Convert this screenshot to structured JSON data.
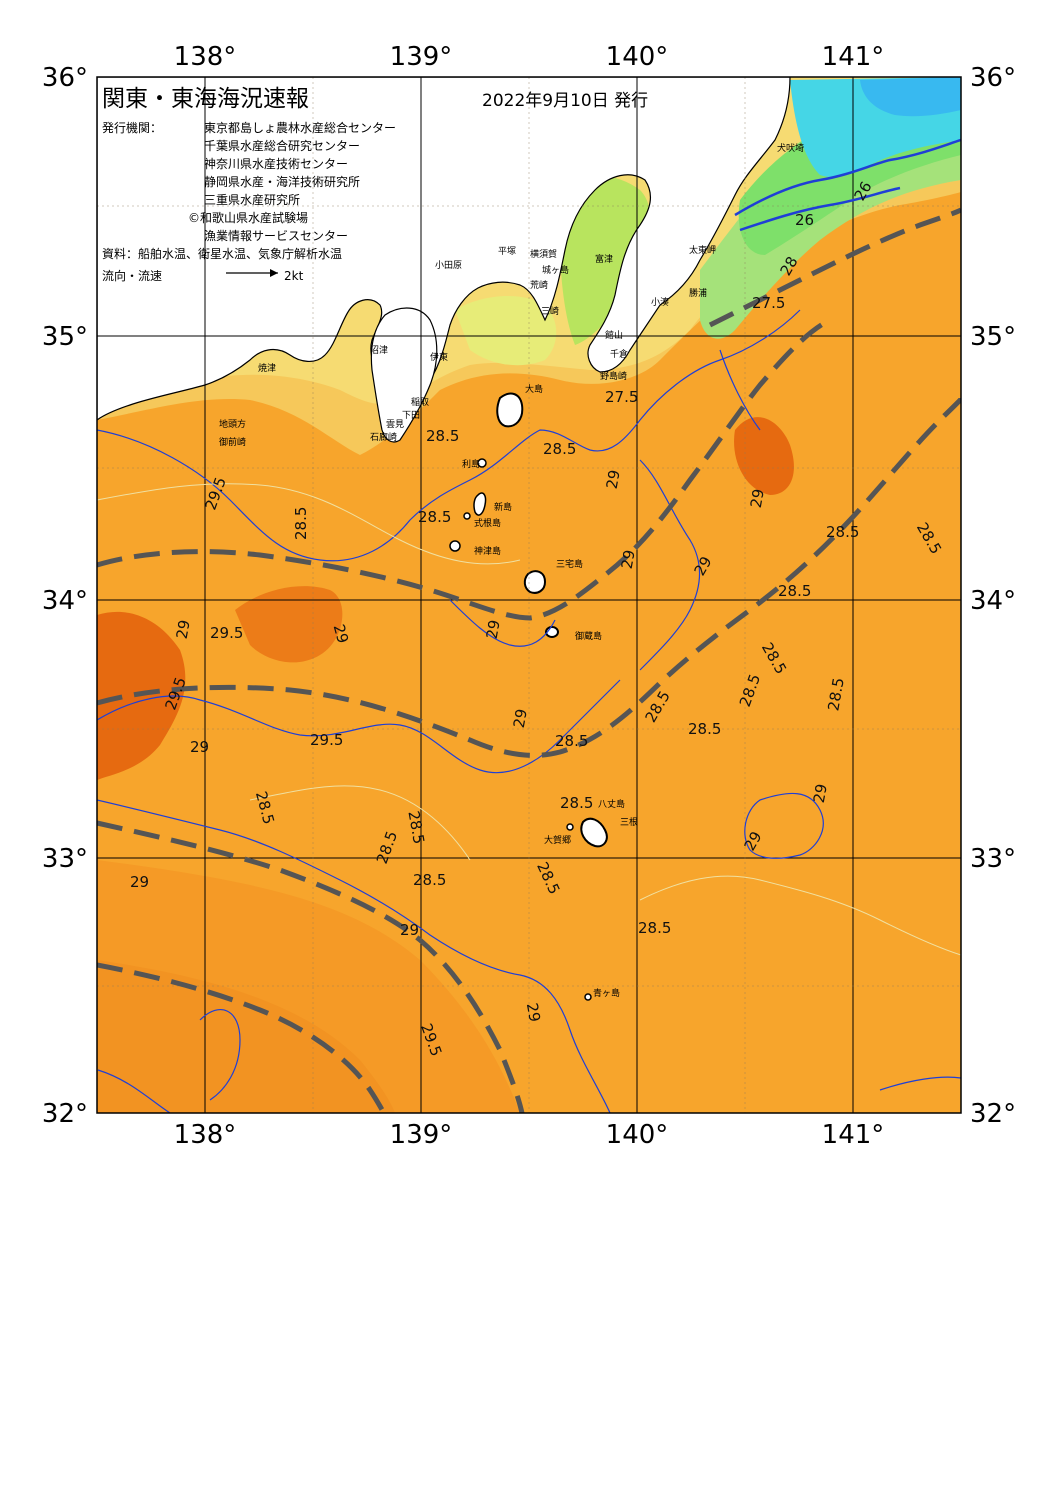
{
  "title": "関東・東海海況速報",
  "issue_date": "2022年9月10日 発行",
  "issuers_label": "発行機関：",
  "issuers": [
    "東京都島しょ農林水産総合センター",
    "千葉県水産総合研究センター",
    "神奈川県水産技術センター",
    "静岡県水産・海洋技術研究所",
    "三重県水産研究所",
    "©和歌山県水産試験場",
    "漁業情報サービスセンター"
  ],
  "sources": "資料：船舶水温、衛星水温、気象庁解析水温",
  "flow_legend": {
    "label": "流向・流速",
    "value": "2kt"
  },
  "lon_labels": [
    "138°",
    "139°",
    "140°",
    "141°"
  ],
  "lat_labels": [
    "36°",
    "35°",
    "34°",
    "33°",
    "32°"
  ],
  "colors": {
    "sea_warm": "#f7a52c",
    "sea_warmer": "#f08b1e",
    "sea_hot": "#e66a10",
    "shelf_yellow": "#f6d36a",
    "shelf_light": "#f9ec87",
    "cool_green": "#8fe36c",
    "cold_cyan": "#3fd9e8",
    "land": "#ffffff",
    "isotherm": "#1f3fd6",
    "current_axis": "#555555"
  },
  "places": [
    {
      "name": "大島"
    },
    {
      "name": "利島"
    },
    {
      "name": "新島"
    },
    {
      "name": "式根島"
    },
    {
      "name": "神津島"
    },
    {
      "name": "三宅島"
    },
    {
      "name": "御蔵島"
    },
    {
      "name": "八丈島"
    },
    {
      "name": "三根"
    },
    {
      "name": "大賀郷"
    },
    {
      "name": "青ヶ島"
    },
    {
      "name": "犬吠埼"
    },
    {
      "name": "太東岬"
    },
    {
      "name": "勝浦"
    },
    {
      "name": "小湊"
    },
    {
      "name": "館山"
    },
    {
      "name": "千倉"
    },
    {
      "name": "野島崎"
    },
    {
      "name": "富津"
    },
    {
      "name": "横須賀"
    },
    {
      "name": "城ヶ島"
    },
    {
      "name": "荒崎"
    },
    {
      "name": "三崎"
    },
    {
      "name": "平塚"
    },
    {
      "name": "小田原"
    },
    {
      "name": "伊東"
    },
    {
      "name": "沼津"
    },
    {
      "name": "稲取"
    },
    {
      "name": "下田"
    },
    {
      "name": "雲見"
    },
    {
      "name": "石廊崎"
    },
    {
      "name": "焼津"
    },
    {
      "name": "御前崎"
    },
    {
      "name": "地頭方"
    }
  ],
  "isotherm_labels": [
    "28.5",
    "28.5",
    "28.5",
    "28.5",
    "28.5",
    "28.5",
    "28.5",
    "28.5",
    "28.5",
    "28.5",
    "28.5",
    "28.5",
    "28.5",
    "28.5",
    "28.5",
    "28.5",
    "28.5",
    "28.5",
    "28.5",
    "28.5",
    "29",
    "29",
    "29",
    "29",
    "29",
    "29",
    "29",
    "29",
    "29",
    "29",
    "29",
    "29",
    "29",
    "29",
    "29.5",
    "29.5",
    "29.5",
    "29.5",
    "29.5",
    "27.5",
    "27.5",
    "28",
    "26",
    "26"
  ]
}
